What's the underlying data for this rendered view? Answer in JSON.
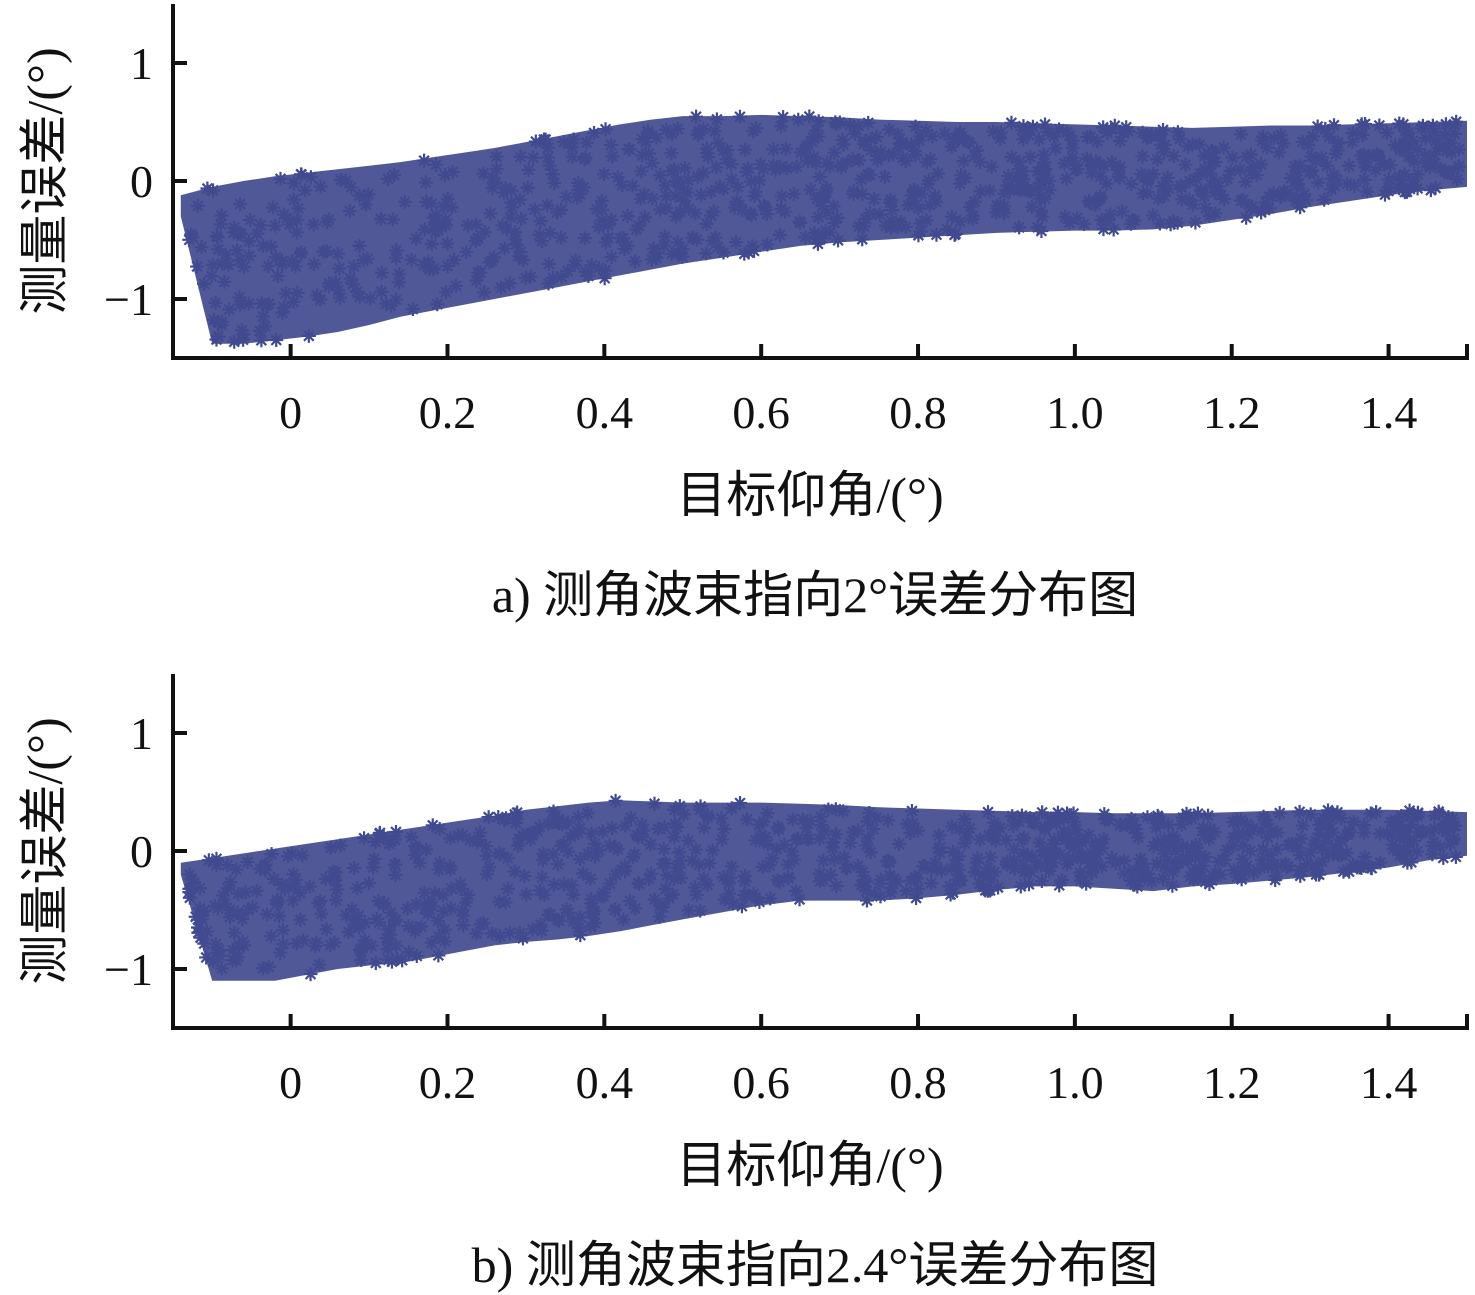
{
  "chart_data": [
    {
      "type": "scatter",
      "caption": "a) 测角波束指向2°误差分布图",
      "xlabel": "目标仰角/(°)",
      "ylabel": "测量误差/(°)",
      "xlim": [
        -0.15,
        1.5
      ],
      "ylim": [
        -1.5,
        1.5
      ],
      "x_ticks": [
        "0",
        "0.2",
        "0.4",
        "0.6",
        "0.8",
        "1.0",
        "1.2",
        "1.4"
      ],
      "y_ticks": [
        "1",
        "0",
        "−1"
      ],
      "grid": false,
      "marker": "asterisk",
      "color": "#414a8f",
      "series": [
        {
          "x": [
            -0.14,
            -0.1,
            -0.06,
            -0.02,
            0.02,
            0.06,
            0.1,
            0.14,
            0.18,
            0.22,
            0.26,
            0.3,
            0.34,
            0.38,
            0.42,
            0.46,
            0.5,
            0.55,
            0.6,
            0.65,
            0.7,
            0.75,
            0.8,
            0.85,
            0.9,
            0.95,
            1.0,
            1.05,
            1.1,
            1.15,
            1.2,
            1.25,
            1.3,
            1.35,
            1.4,
            1.45,
            1.5
          ],
          "upper": [
            -0.12,
            -0.05,
            0.0,
            0.04,
            0.07,
            0.1,
            0.13,
            0.16,
            0.2,
            0.24,
            0.28,
            0.33,
            0.38,
            0.43,
            0.48,
            0.52,
            0.55,
            0.55,
            0.56,
            0.55,
            0.54,
            0.52,
            0.51,
            0.5,
            0.5,
            0.49,
            0.48,
            0.47,
            0.46,
            0.45,
            0.46,
            0.47,
            0.47,
            0.48,
            0.49,
            0.5,
            0.51
          ],
          "lower": [
            -0.3,
            -1.38,
            -1.38,
            -1.35,
            -1.32,
            -1.28,
            -1.22,
            -1.15,
            -1.1,
            -1.05,
            -1.0,
            -0.95,
            -0.9,
            -0.85,
            -0.8,
            -0.75,
            -0.7,
            -0.65,
            -0.6,
            -0.55,
            -0.52,
            -0.5,
            -0.48,
            -0.46,
            -0.44,
            -0.43,
            -0.42,
            -0.42,
            -0.41,
            -0.38,
            -0.33,
            -0.28,
            -0.22,
            -0.17,
            -0.12,
            -0.08,
            -0.05
          ]
        }
      ]
    },
    {
      "type": "scatter",
      "caption": "b) 测角波束指向2.4°误差分布图",
      "xlabel": "目标仰角/(°)",
      "ylabel": "测量误差/(°)",
      "xlim": [
        -0.15,
        1.5
      ],
      "ylim": [
        -1.5,
        1.5
      ],
      "x_ticks": [
        "0",
        "0.2",
        "0.4",
        "0.6",
        "0.8",
        "1.0",
        "1.2",
        "1.4"
      ],
      "y_ticks": [
        "1",
        "0",
        "−1"
      ],
      "grid": false,
      "marker": "asterisk",
      "color": "#414a8f",
      "series": [
        {
          "x": [
            -0.14,
            -0.1,
            -0.06,
            -0.02,
            0.02,
            0.06,
            0.1,
            0.14,
            0.18,
            0.22,
            0.26,
            0.3,
            0.34,
            0.38,
            0.42,
            0.46,
            0.5,
            0.55,
            0.6,
            0.65,
            0.7,
            0.75,
            0.8,
            0.85,
            0.9,
            0.95,
            1.0,
            1.05,
            1.1,
            1.15,
            1.2,
            1.25,
            1.3,
            1.35,
            1.4,
            1.45,
            1.5
          ],
          "upper": [
            -0.1,
            -0.06,
            -0.02,
            0.02,
            0.06,
            0.1,
            0.14,
            0.18,
            0.22,
            0.26,
            0.3,
            0.35,
            0.38,
            0.41,
            0.43,
            0.42,
            0.41,
            0.41,
            0.41,
            0.4,
            0.39,
            0.37,
            0.36,
            0.35,
            0.34,
            0.33,
            0.33,
            0.32,
            0.32,
            0.32,
            0.33,
            0.34,
            0.35,
            0.35,
            0.35,
            0.34,
            0.33
          ],
          "lower": [
            -0.2,
            -1.1,
            -1.1,
            -1.1,
            -1.05,
            -1.0,
            -0.97,
            -0.95,
            -0.9,
            -0.85,
            -0.8,
            -0.77,
            -0.75,
            -0.72,
            -0.68,
            -0.63,
            -0.58,
            -0.52,
            -0.46,
            -0.42,
            -0.42,
            -0.42,
            -0.4,
            -0.37,
            -0.33,
            -0.3,
            -0.3,
            -0.32,
            -0.34,
            -0.3,
            -0.28,
            -0.25,
            -0.22,
            -0.18,
            -0.14,
            -0.08,
            -0.04
          ]
        }
      ]
    }
  ]
}
